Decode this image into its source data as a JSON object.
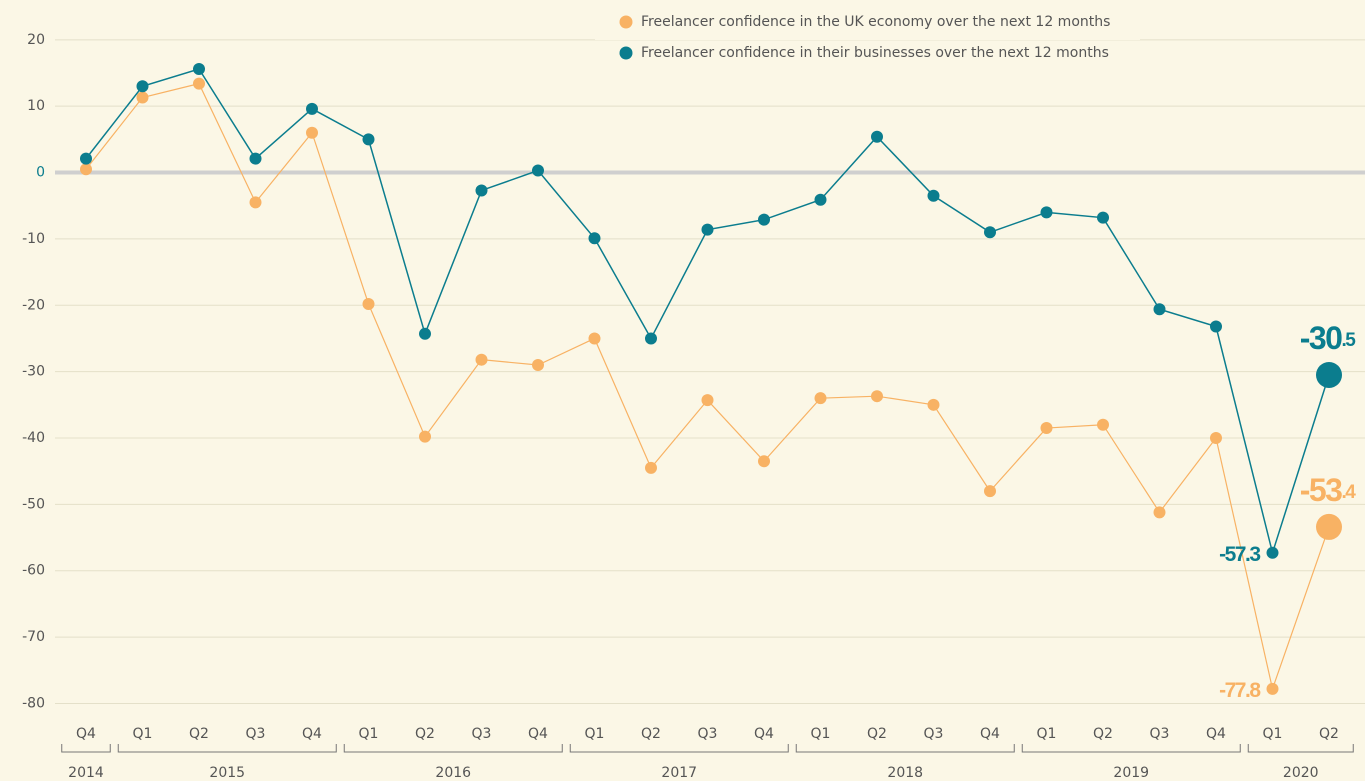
{
  "chart_data": {
    "type": "line",
    "category_groups": [
      {
        "label": "2014",
        "quarters": [
          "Q4"
        ]
      },
      {
        "label": "2015",
        "quarters": [
          "Q1",
          "Q2",
          "Q3",
          "Q4"
        ]
      },
      {
        "label": "2016",
        "quarters": [
          "Q1",
          "Q2",
          "Q3",
          "Q4"
        ]
      },
      {
        "label": "2017",
        "quarters": [
          "Q1",
          "Q2",
          "Q3",
          "Q4"
        ]
      },
      {
        "label": "2018",
        "quarters": [
          "Q1",
          "Q2",
          "Q3",
          "Q4"
        ]
      },
      {
        "label": "2019",
        "quarters": [
          "Q1",
          "Q2",
          "Q3",
          "Q4"
        ]
      },
      {
        "label": "2020",
        "quarters": [
          "Q1",
          "Q2"
        ]
      }
    ],
    "series": [
      {
        "name": "Freelancer confidence in the UK economy over the next 12 months",
        "color": "#f8b264",
        "values": [
          0.5,
          11.3,
          13.4,
          -4.5,
          6,
          -19.8,
          -39.8,
          -28.2,
          -29,
          -25,
          -44.5,
          -34.3,
          -43.5,
          -34,
          -33.7,
          -35,
          -48,
          -38.5,
          -38,
          -51.2,
          -40,
          -77.8,
          -53.4
        ],
        "value_labels": [
          null,
          null,
          null,
          null,
          null,
          null,
          null,
          null,
          null,
          null,
          null,
          null,
          null,
          null,
          null,
          null,
          null,
          null,
          null,
          null,
          null,
          "-77.8",
          "-53.4"
        ]
      },
      {
        "name": "Freelancer confidence in their businesses over the next 12 months",
        "color": "#0b7d8e",
        "values": [
          2.1,
          13,
          15.6,
          2.1,
          9.6,
          5,
          -24.3,
          -2.7,
          0.3,
          -9.9,
          -25,
          -8.6,
          -7.1,
          -4.1,
          5.4,
          -3.5,
          -9,
          -6,
          -6.8,
          -20.6,
          -23.2,
          -57.3,
          -30.5
        ],
        "value_labels": [
          null,
          null,
          null,
          null,
          null,
          null,
          null,
          null,
          null,
          null,
          null,
          null,
          null,
          null,
          null,
          null,
          null,
          null,
          null,
          null,
          null,
          "-57.3",
          "-30.5"
        ]
      }
    ],
    "ylim": [
      -84,
      26
    ],
    "yticks": [
      20,
      10,
      0,
      -10,
      -20,
      -30,
      -40,
      -50,
      -60,
      -70,
      -80
    ],
    "grid": true
  }
}
